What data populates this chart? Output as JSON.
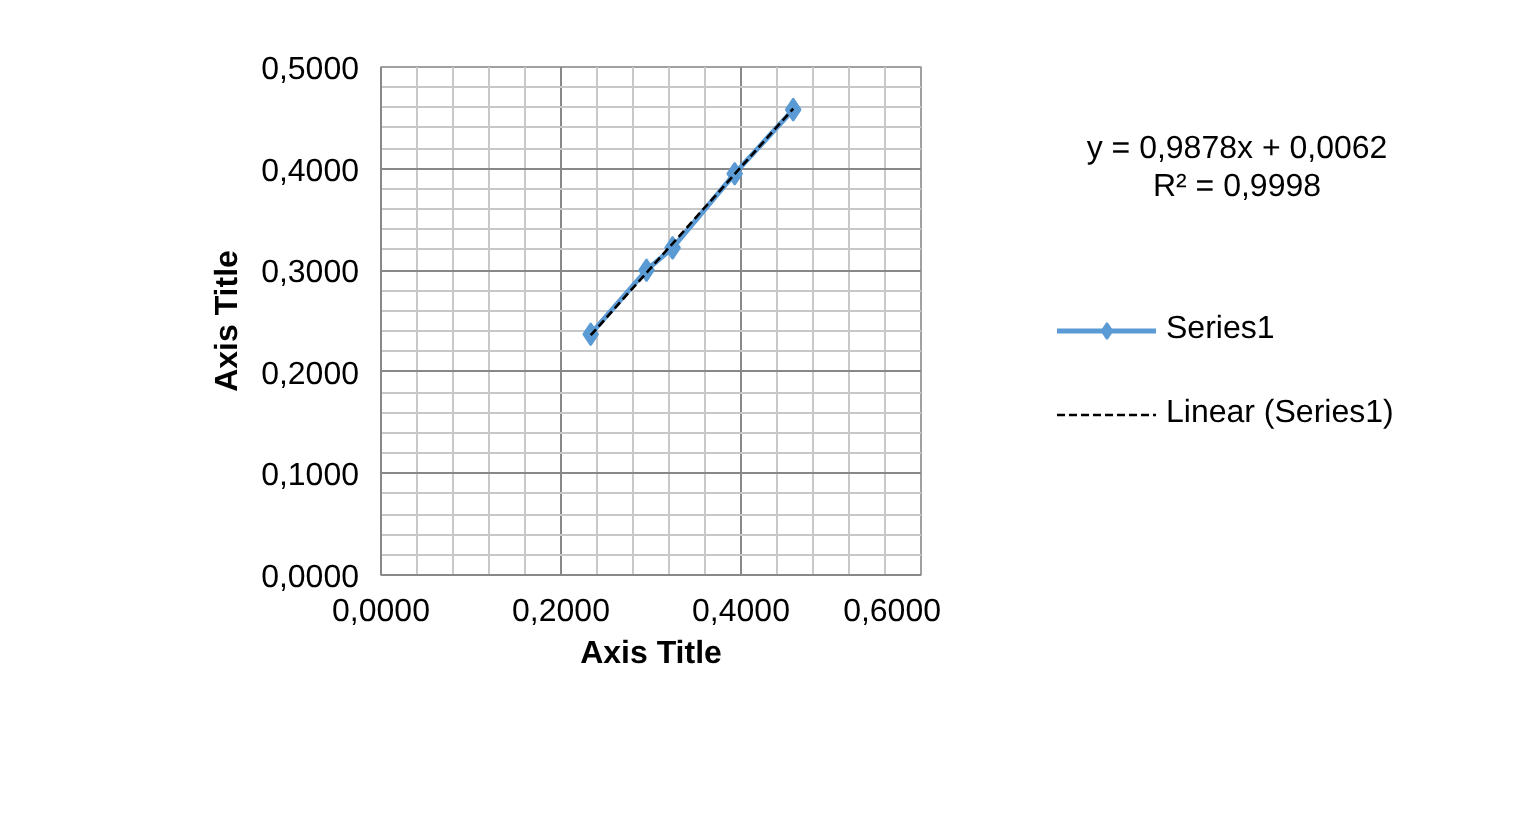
{
  "chart_data": {
    "type": "scatter",
    "xlabel": "Axis Title",
    "ylabel": "Axis Title",
    "series": [
      {
        "name": "Series1",
        "marker": "diamond",
        "line_style": "solid",
        "color": "#5b9bd5",
        "x": [
          0.233,
          0.295,
          0.324,
          0.393,
          0.458
        ],
        "values": [
          0.237,
          0.3,
          0.322,
          0.395,
          0.458
        ]
      },
      {
        "name": "Linear (Series1)",
        "type": "line",
        "marker": "none",
        "line_style": "dashed",
        "color": "#000000",
        "x": [
          0.233,
          0.458
        ],
        "values": [
          0.236,
          0.459
        ]
      }
    ],
    "xlim": [
      0,
      0.6
    ],
    "ylim": [
      0,
      0.5
    ],
    "xticks": [
      {
        "value": 0,
        "label": "0,0000"
      },
      {
        "value": 0.2,
        "label": "0,2000"
      },
      {
        "value": 0.4,
        "label": "0,4000"
      },
      {
        "value": 0.6,
        "label": "0,6000"
      }
    ],
    "yticks": [
      {
        "value": 0,
        "label": "0,0000"
      },
      {
        "value": 0.1,
        "label": "0,1000"
      },
      {
        "value": 0.2,
        "label": "0,2000"
      },
      {
        "value": 0.3,
        "label": "0,3000"
      },
      {
        "value": 0.4,
        "label": "0,4000"
      },
      {
        "value": 0.5,
        "label": "0,5000"
      }
    ],
    "grid": true,
    "legend": "right",
    "annotations": [
      "y = 0,9878x + 0,0062",
      "R² = 0,9998"
    ]
  }
}
